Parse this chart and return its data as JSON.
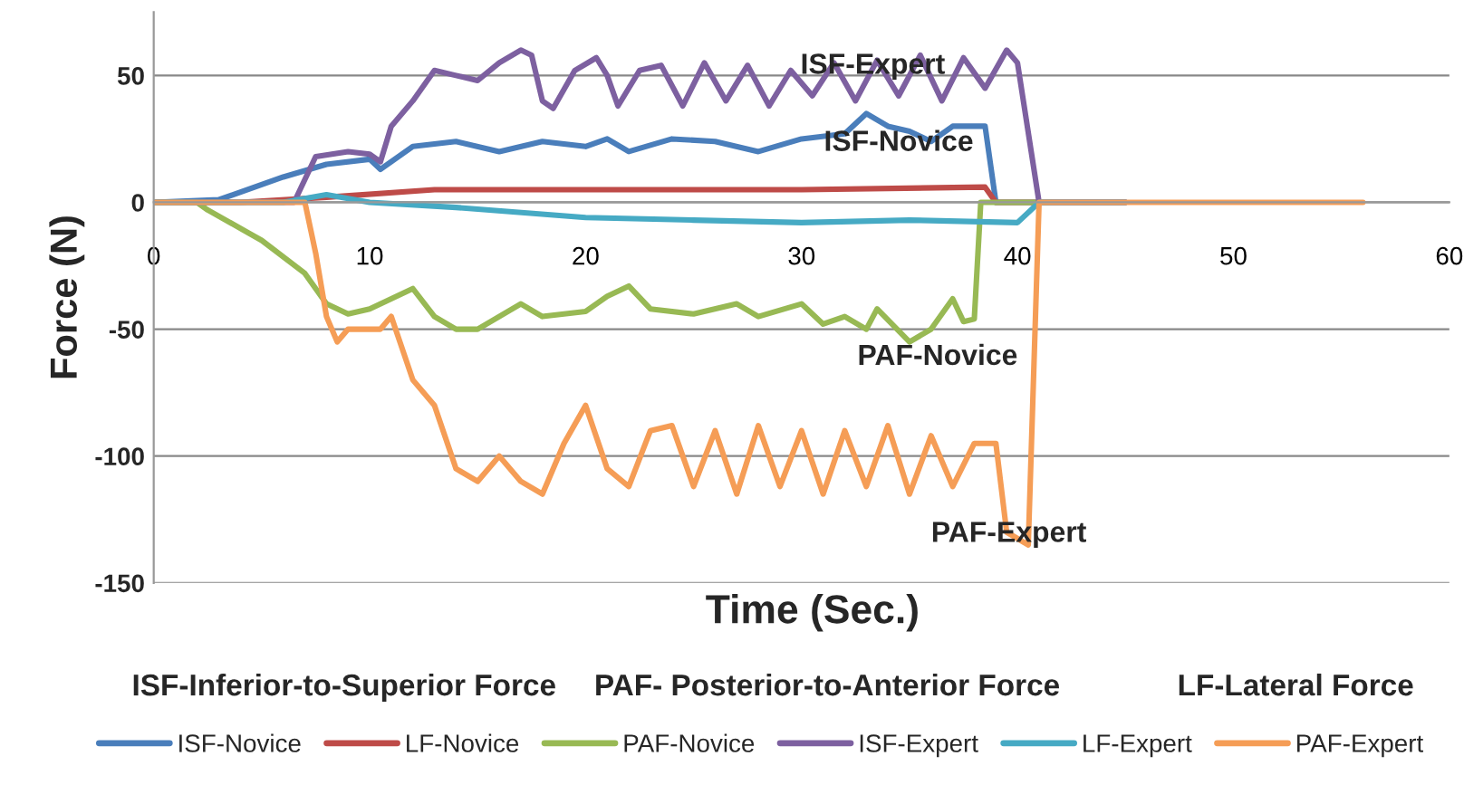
{
  "chart_data": {
    "type": "line",
    "xlabel": "Time (Sec.)",
    "ylabel": "Force (N)",
    "xlim": [
      0,
      60
    ],
    "xticks": [
      0,
      10,
      20,
      30,
      40,
      50,
      60
    ],
    "ylim": [
      -150,
      75
    ],
    "yticks": [
      -150,
      -100,
      -50,
      0,
      50
    ],
    "grid": "y",
    "legend": "bottom",
    "marker": "none",
    "line_style": "solid",
    "series": [
      {
        "name": "ISF-Novice",
        "color": "#4a7ebb",
        "x": [
          0,
          3,
          6,
          8,
          10,
          10.5,
          12,
          14,
          16,
          18,
          20,
          21,
          22,
          24,
          26,
          28,
          30,
          32,
          33,
          34,
          35,
          36,
          37,
          38.5,
          39,
          45
        ],
        "values": [
          0,
          1,
          10,
          15,
          17,
          13,
          22,
          24,
          20,
          24,
          22,
          25,
          20,
          25,
          24,
          20,
          25,
          27,
          35,
          30,
          28,
          24,
          30,
          30,
          0,
          0
        ]
      },
      {
        "name": "LF-Novice",
        "color": "#be4b48",
        "x": [
          0,
          4,
          8,
          13,
          20,
          30,
          38.5,
          39,
          45
        ],
        "values": [
          0,
          0,
          2,
          5,
          5,
          5,
          6,
          0,
          0
        ]
      },
      {
        "name": "PAF-Novice",
        "color": "#98b954",
        "x": [
          0,
          2,
          2.5,
          5,
          7,
          8,
          9,
          10,
          11,
          12,
          13,
          14,
          15,
          17,
          18,
          20,
          21,
          22,
          23,
          25,
          27,
          28,
          30,
          31,
          32,
          33,
          33.5,
          35,
          36,
          37,
          37.5,
          38,
          38.3,
          41.5
        ],
        "values": [
          0,
          0,
          -3,
          -15,
          -28,
          -40,
          -44,
          -42,
          -38,
          -34,
          -45,
          -50,
          -50,
          -40,
          -45,
          -43,
          -37,
          -33,
          -42,
          -44,
          -40,
          -45,
          -40,
          -48,
          -45,
          -50,
          -42,
          -55,
          -50,
          -38,
          -47,
          -46,
          0,
          0
        ]
      },
      {
        "name": "ISF-Expert",
        "color": "#7d60a0",
        "x": [
          0,
          6.5,
          7.5,
          9,
          10,
          10.5,
          11,
          12,
          13,
          14,
          15,
          16,
          17,
          17.5,
          18,
          18.5,
          19.5,
          20.5,
          21,
          21.5,
          22.5,
          23.5,
          24.5,
          25.5,
          26.5,
          27.5,
          28.5,
          29.5,
          30.5,
          31.5,
          32.5,
          33.5,
          34.5,
          35.5,
          36.5,
          37.5,
          38.5,
          39.5,
          40,
          41,
          45
        ],
        "values": [
          0,
          0,
          18,
          20,
          19,
          16,
          30,
          40,
          52,
          50,
          48,
          55,
          60,
          58,
          40,
          37,
          52,
          57,
          50,
          38,
          52,
          54,
          38,
          55,
          40,
          54,
          38,
          52,
          42,
          55,
          40,
          56,
          42,
          58,
          40,
          57,
          45,
          60,
          55,
          0,
          0
        ]
      },
      {
        "name": "LF-Expert",
        "color": "#46aac4",
        "x": [
          0,
          6,
          8,
          10,
          14,
          20,
          25,
          30,
          35,
          40,
          41,
          45
        ],
        "values": [
          0,
          0,
          3,
          0,
          -2,
          -6,
          -7,
          -8,
          -7,
          -8,
          0,
          0
        ]
      },
      {
        "name": "PAF-Expert",
        "color": "#f59d56",
        "x": [
          0,
          7,
          7.5,
          8,
          8.5,
          9,
          10.5,
          11,
          12,
          13,
          14,
          15,
          16,
          17,
          18,
          19,
          20,
          21,
          22,
          23,
          24,
          25,
          26,
          27,
          28,
          29,
          30,
          31,
          32,
          33,
          34,
          35,
          36,
          37,
          38,
          39,
          39.5,
          40.5,
          41,
          56
        ],
        "values": [
          0,
          0,
          -20,
          -45,
          -55,
          -50,
          -50,
          -45,
          -70,
          -80,
          -105,
          -110,
          -100,
          -110,
          -115,
          -95,
          -80,
          -105,
          -112,
          -90,
          -88,
          -112,
          -90,
          -115,
          -88,
          -112,
          -90,
          -115,
          -90,
          -112,
          -88,
          -115,
          -92,
          -112,
          -95,
          -95,
          -130,
          -135,
          0,
          0
        ]
      }
    ],
    "annotations": [
      "ISF-Expert",
      "ISF-Novice",
      "PAF-Novice",
      "PAF-Expert",
      "ISF-Inferior-to-Superior Force",
      "PAF- Posterior-to-Anterior Force",
      "LF-Lateral Force"
    ]
  }
}
